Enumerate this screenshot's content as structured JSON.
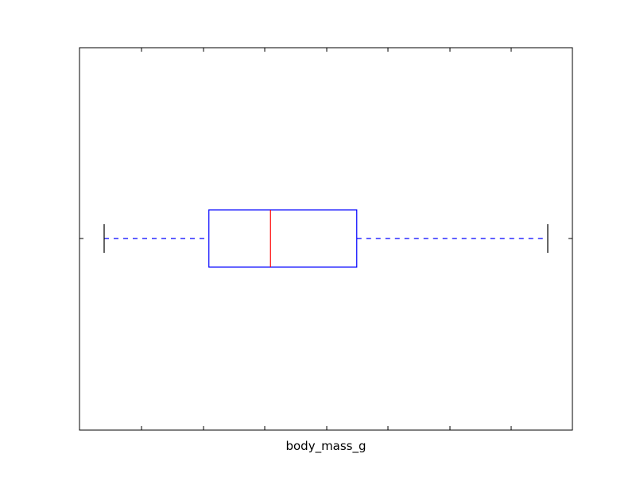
{
  "chart_data": {
    "type": "boxplot",
    "orientation": "horizontal",
    "title": "",
    "xlabel": "",
    "ylabel": "",
    "x_tick_labels": [
      "body_mass_g"
    ],
    "y_tick_labels": [],
    "grid": false,
    "series": [
      {
        "category": "body_mass_g",
        "whisker_low": 2700,
        "q1": 3550,
        "median": 4050,
        "q3": 4750,
        "whisker_high": 6300
      }
    ],
    "ylim": [
      2500,
      6500
    ],
    "colors": {
      "box": "#0000ff",
      "median": "#ff0000",
      "whisker": "#0000ff",
      "cap": "#000000"
    }
  }
}
